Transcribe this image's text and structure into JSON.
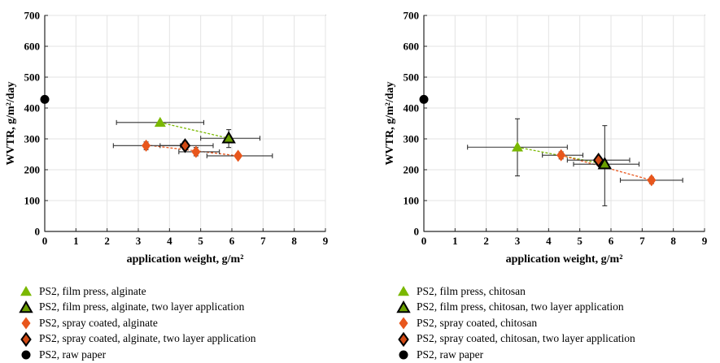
{
  "colors": {
    "film_press": "#7ab800",
    "film_press_two_layer": "#6a9f00",
    "spray": "#e8561c",
    "spray_two_layer": "#d14a14",
    "raw": "#000000",
    "errorbar": "#333333"
  },
  "chart_data": [
    {
      "type": "scatter",
      "xlabel": "application weight, g/m²",
      "ylabel": "WVTR, g/m²/day",
      "xlim": [
        0,
        9
      ],
      "ylim": [
        0,
        700
      ],
      "x_ticks": [
        "0",
        "1",
        "2",
        "3",
        "4",
        "5",
        "6",
        "7",
        "8",
        "9"
      ],
      "y_ticks": [
        "0",
        "100",
        "200",
        "300",
        "400",
        "500",
        "600",
        "700"
      ],
      "grid": true,
      "legend_placement": "below",
      "series": [
        {
          "name": "PS2, film press, alginate",
          "marker": "triangle",
          "color_key": "film_press",
          "points": [
            {
              "x": 3.7,
              "y": 353,
              "xerr": [
                2.3,
                5.1
              ],
              "yerr": null
            }
          ]
        },
        {
          "name": "PS2, film press, alginate, two layer application",
          "marker": "triangle-outline",
          "color_key": "film_press_two_layer",
          "points": [
            {
              "x": 5.9,
              "y": 302,
              "xerr": [
                5.0,
                6.9
              ],
              "yerr": [
                272,
                330
              ]
            }
          ]
        },
        {
          "name": "PS2, spray coated, alginate",
          "marker": "diamond",
          "color_key": "spray",
          "points": [
            {
              "x": 3.25,
              "y": 278,
              "xerr": [
                2.2,
                4.35
              ],
              "yerr": [
                265,
                290
              ]
            },
            {
              "x": 4.85,
              "y": 258,
              "xerr": [
                4.3,
                5.6
              ],
              "yerr": [
                245,
                272
              ]
            },
            {
              "x": 6.2,
              "y": 245,
              "xerr": [
                5.2,
                7.3
              ],
              "yerr": [
                237,
                253
              ]
            }
          ]
        },
        {
          "name": "PS2, spray coated, alginate, two layer application",
          "marker": "diamond-outline",
          "color_key": "spray_two_layer",
          "points": [
            {
              "x": 4.5,
              "y": 278,
              "xerr": [
                3.7,
                5.4
              ],
              "yerr": [
                265,
                292
              ]
            }
          ]
        },
        {
          "name": "PS2, raw paper",
          "marker": "circle",
          "color_key": "raw",
          "points": [
            {
              "x": 0,
              "y": 428,
              "xerr": null,
              "yerr": null
            }
          ]
        }
      ],
      "trendlines": [
        {
          "color_key": "film_press",
          "from": [
            3.7,
            353
          ],
          "to": [
            5.9,
            302
          ]
        },
        {
          "color_key": "spray",
          "from": [
            3.25,
            280
          ],
          "to": [
            6.2,
            245
          ]
        }
      ]
    },
    {
      "type": "scatter",
      "xlabel": "application weight, g/m²",
      "ylabel": "WVTR, g/m²/day",
      "xlim": [
        0,
        9
      ],
      "ylim": [
        0,
        700
      ],
      "x_ticks": [
        "0",
        "1",
        "2",
        "3",
        "4",
        "5",
        "6",
        "7",
        "8",
        "9"
      ],
      "y_ticks": [
        "0",
        "100",
        "200",
        "300",
        "400",
        "500",
        "600",
        "700"
      ],
      "grid": true,
      "legend_placement": "below",
      "series": [
        {
          "name": "PS2, film press, chitosan",
          "marker": "triangle",
          "color_key": "film_press",
          "points": [
            {
              "x": 3.0,
              "y": 273,
              "xerr": [
                1.4,
                4.6
              ],
              "yerr": [
                180,
                365
              ]
            }
          ]
        },
        {
          "name": "PS2, film press, chitosan, two layer application",
          "marker": "triangle-outline",
          "color_key": "film_press_two_layer",
          "points": [
            {
              "x": 5.8,
              "y": 218,
              "xerr": [
                4.8,
                6.9
              ],
              "yerr": [
                83,
                343
              ]
            }
          ]
        },
        {
          "name": "PS2, spray coated, chitosan",
          "marker": "diamond",
          "color_key": "spray",
          "points": [
            {
              "x": 4.4,
              "y": 247,
              "xerr": [
                3.8,
                5.1
              ],
              "yerr": [
                235,
                258
              ]
            },
            {
              "x": 7.3,
              "y": 166,
              "xerr": [
                6.3,
                8.3
              ],
              "yerr": [
                155,
                176
              ]
            }
          ]
        },
        {
          "name": "PS2, spray coated, chitosan, two layer application",
          "marker": "diamond-outline",
          "color_key": "spray_two_layer",
          "points": [
            {
              "x": 5.6,
              "y": 231,
              "xerr": [
                4.6,
                6.6
              ],
              "yerr": [
                220,
                242
              ]
            }
          ]
        },
        {
          "name": "PS2, raw paper",
          "marker": "circle",
          "color_key": "raw",
          "points": [
            {
              "x": 0,
              "y": 428,
              "xerr": null,
              "yerr": null
            }
          ]
        }
      ],
      "trendlines": [
        {
          "color_key": "film_press",
          "from": [
            3.0,
            273
          ],
          "to": [
            5.8,
            218
          ]
        },
        {
          "color_key": "spray",
          "from": [
            4.4,
            247
          ],
          "to": [
            7.3,
            166
          ]
        }
      ]
    }
  ]
}
